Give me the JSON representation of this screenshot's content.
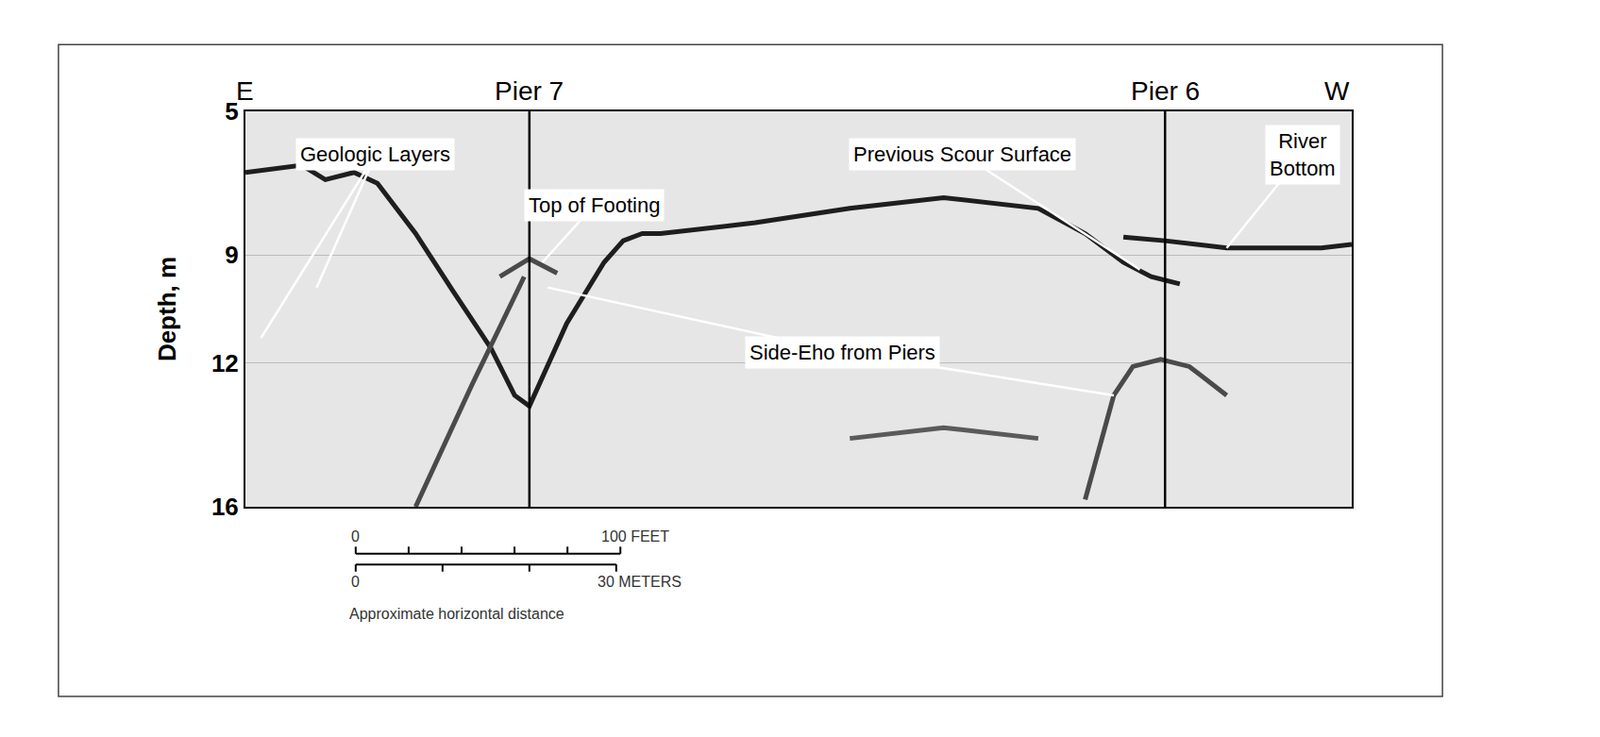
{
  "chart_data": {
    "type": "line",
    "y_label": "Depth, m",
    "ylim": [
      5,
      16
    ],
    "yticks": [
      5,
      9,
      12,
      16
    ],
    "xlim": [
      0,
      127.4
    ],
    "tick_labels": "y",
    "grid": true,
    "directions": [
      "E",
      "W"
    ],
    "piers": [
      {
        "label": "Pier 7",
        "x": 32.7
      },
      {
        "label": "Pier 6",
        "x": 105.9
      }
    ],
    "series": [
      {
        "color": "#1e1e1e",
        "line_style": "solid",
        "x": [
          0,
          6.5,
          9.2,
          12.5,
          15.2,
          19.6,
          23.9,
          28.3,
          31.0,
          32.7,
          37.0,
          41.3,
          43.5,
          45.7,
          47.8,
          58.7,
          69.6,
          80.4,
          91.3,
          96.7,
          101.1,
          104.3,
          107.6
        ],
        "values": [
          6.7,
          6.5,
          6.9,
          6.7,
          7.0,
          8.4,
          10.0,
          11.6,
          12.9,
          13.2,
          10.9,
          9.2,
          8.6,
          8.4,
          8.4,
          8.1,
          7.7,
          7.4,
          7.7,
          8.4,
          9.2,
          9.6,
          9.8
        ]
      },
      {
        "color": "#1e1e1e",
        "line_style": "solid",
        "x": [
          101.1,
          105.9,
          113.0,
          123.9,
          127.4
        ],
        "values": [
          8.5,
          8.6,
          8.8,
          8.8,
          8.7
        ]
      },
      {
        "color": "#4a4a4a",
        "line_style": "solid",
        "x": [
          19.6,
          26.1,
          32.1
        ],
        "values": [
          16.0,
          12.6,
          9.6
        ]
      },
      {
        "color": "#4a4a4a",
        "line_style": "solid",
        "x": [
          29.3,
          32.7,
          35.9
        ],
        "values": [
          9.6,
          9.1,
          9.5
        ]
      },
      {
        "color": "#4a4a4a",
        "line_style": "solid",
        "x": [
          96.7,
          100.0,
          102.2,
          105.4,
          108.7,
          113.0
        ],
        "values": [
          15.8,
          12.9,
          12.1,
          11.9,
          12.1,
          12.9
        ]
      },
      {
        "color": "#5a5a5a",
        "line_style": "solid",
        "x": [
          69.6,
          80.4,
          91.3
        ],
        "values": [
          14.1,
          13.8,
          14.1
        ]
      }
    ],
    "annotations": [
      {
        "text": "Geologic Layers",
        "x": 15.0,
        "y": 6.2,
        "points": [
          [
            1.8,
            11.3
          ],
          [
            8.2,
            9.9
          ]
        ]
      },
      {
        "text": "Top of Footing",
        "x": 40.2,
        "y": 7.6,
        "points": [
          [
            34.2,
            9.2
          ]
        ]
      },
      {
        "text": "Previous Scour Surface",
        "x": 82.6,
        "y": 6.2,
        "points": [
          [
            103.0,
            9.4
          ]
        ]
      },
      {
        "text": "River\nBottom",
        "x": 121.7,
        "y": 6.2,
        "points": [
          [
            113.0,
            8.8
          ]
        ]
      },
      {
        "text": "Side-Eho from Piers",
        "x": 68.8,
        "y": 11.7,
        "points": [
          [
            34.8,
            9.9
          ],
          [
            100.0,
            12.9
          ]
        ]
      }
    ],
    "scale_bar": {
      "start": 12.7,
      "feet": {
        "length": 100,
        "ticks": [
          0,
          20,
          40,
          60,
          80,
          100
        ],
        "labels": [
          "0",
          "100 FEET"
        ]
      },
      "meters": {
        "length": 30,
        "ticks": [
          0,
          10,
          20,
          30
        ],
        "labels": [
          "0",
          "30 METERS"
        ]
      },
      "caption": "Approximate horizontal distance"
    }
  }
}
